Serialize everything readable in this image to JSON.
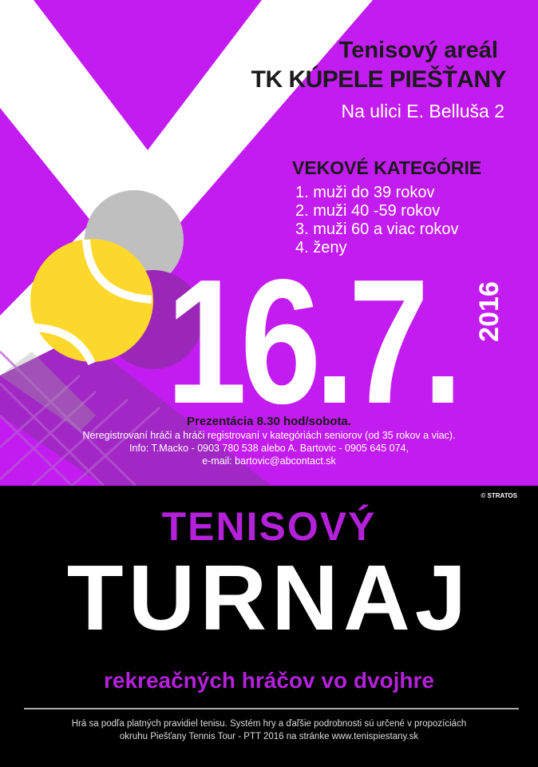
{
  "venue": {
    "line1": "Tenisový areál",
    "line2": "TK KÚPELE PIEŠŤANY",
    "address": "Na ulici E. Belluša 2"
  },
  "categories": {
    "heading": "VEKOVÉ KATEGÓRIE",
    "items": [
      "1. muži do 39 rokov",
      "2. muži 40 -59 rokov",
      "3. muži 60 a viac rokov",
      "4. ženy"
    ]
  },
  "date": {
    "day_month": "16.7.",
    "year": "2016"
  },
  "info": {
    "presentation": "Prezentácia 8.30 hod/sobota.",
    "eligibility": "Neregistrovaní hráči a hráči registrovaní v kategóriách seniorov (od 35 rokov a viac).",
    "contact": "Info: T.Macko - 0903 780 538 alebo A. Bartovic - 0905 645 074,",
    "email": "e-mail: bartovic@abcontact.sk"
  },
  "credit": "© STRATOS",
  "title": {
    "line1": "TENISOVÝ",
    "line2": "TURNAJ",
    "subtitle": "rekreačných hráčov vo dvojhre"
  },
  "footer": {
    "line1": "Hrá sa podľa platných pravidiel tenisu. Systém hry a ďaľšie podrobnosti sú určené v propozíciách",
    "line2": "okruhu Piešťany Tennis Tour - PTT 2016 na stránke www.tenispiestany.sk"
  },
  "colors": {
    "purple": "#c21cf0",
    "dark_purple": "#9b27b8",
    "ball": "#fdd82c",
    "black": "#000000"
  }
}
